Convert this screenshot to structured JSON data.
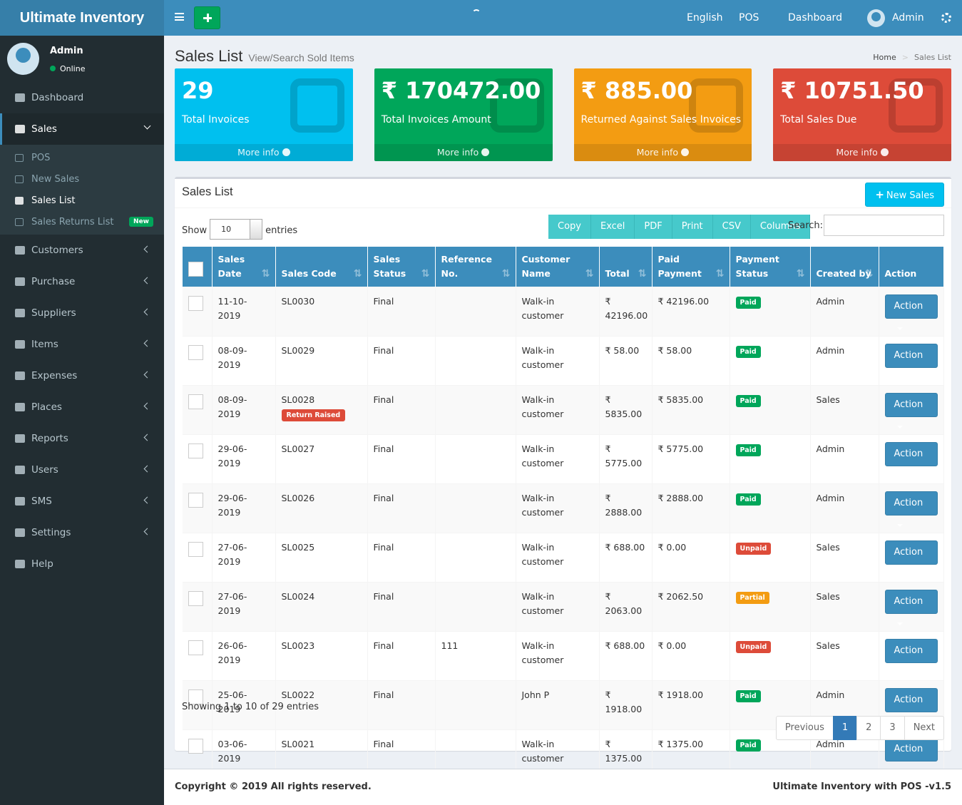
{
  "brand": "Ultimate Inventory",
  "topbar": {
    "language": "English",
    "pos": "POS",
    "dashboard": "Dashboard",
    "user": "Admin"
  },
  "sidebar": {
    "user": {
      "name": "Admin",
      "status": "Online"
    },
    "menu": [
      {
        "label": "Dashboard"
      },
      {
        "label": "Sales",
        "active": true,
        "children": [
          {
            "label": "POS"
          },
          {
            "label": "New Sales"
          },
          {
            "label": "Sales List",
            "active": true
          },
          {
            "label": "Sales Returns List",
            "badge": "New"
          }
        ]
      },
      {
        "label": "Customers",
        "expandable": true
      },
      {
        "label": "Purchase",
        "expandable": true
      },
      {
        "label": "Suppliers",
        "expandable": true
      },
      {
        "label": "Items",
        "expandable": true
      },
      {
        "label": "Expenses",
        "expandable": true
      },
      {
        "label": "Places",
        "expandable": true
      },
      {
        "label": "Reports",
        "expandable": true
      },
      {
        "label": "Users",
        "expandable": true
      },
      {
        "label": "SMS",
        "expandable": true
      },
      {
        "label": "Settings",
        "expandable": true
      },
      {
        "label": "Help"
      }
    ]
  },
  "header": {
    "title": "Sales List",
    "subtitle": "View/Search Sold Items",
    "breadcrumb": [
      "Home",
      "Sales List"
    ]
  },
  "stats": [
    {
      "value": "29",
      "label": "Total Invoices",
      "link": "More info",
      "color": "#00c0ef"
    },
    {
      "value": "₹ 170472.00",
      "label": "Total Invoices Amount",
      "link": "More info",
      "color": "#00a65a"
    },
    {
      "value": "₹ 885.00",
      "label": "Returned Against Sales Invoices",
      "link": "More info",
      "color": "#f39c12"
    },
    {
      "value": "₹ 10751.50",
      "label": "Total Sales Due",
      "link": "More info",
      "color": "#dd4b39"
    }
  ],
  "box": {
    "title": "Sales List",
    "new_button": "New Sales"
  },
  "controls": {
    "show": "Show",
    "page_size": "10",
    "entries": "entries",
    "buttons": [
      "Copy",
      "Excel",
      "PDF",
      "Print",
      "CSV",
      "Columns"
    ],
    "search": "Search:"
  },
  "table": {
    "columns": [
      "Sales Date",
      "Sales Code",
      "Sales Status",
      "Reference No.",
      "Customer Name",
      "Total",
      "Paid Payment",
      "Payment Status",
      "Created by",
      "Action"
    ],
    "badge_colors": {
      "Paid": "#00a65a",
      "Unpaid": "#dd4b39",
      "Partial": "#f39c12"
    },
    "rows": [
      {
        "cells": [
          "11-10-2019",
          "SL0030",
          "Final",
          "",
          "Walk-in customer",
          "₹ 42196.00",
          "₹ 42196.00",
          "Paid",
          "Admin",
          "Action"
        ]
      },
      {
        "cells": [
          "08-09-2019",
          "SL0029",
          "Final",
          "",
          "Walk-in customer",
          "₹ 58.00",
          "₹ 58.00",
          "Paid",
          "Admin",
          "Action"
        ]
      },
      {
        "cells": [
          "08-09-2019",
          "SL0028",
          "Final",
          "",
          "Walk-in customer",
          "₹ 5835.00",
          "₹ 5835.00",
          "Paid",
          "Sales",
          "Action"
        ],
        "note": "Return Raised"
      },
      {
        "cells": [
          "29-06-2019",
          "SL0027",
          "Final",
          "",
          "Walk-in customer",
          "₹ 5775.00",
          "₹ 5775.00",
          "Paid",
          "Admin",
          "Action"
        ]
      },
      {
        "cells": [
          "29-06-2019",
          "SL0026",
          "Final",
          "",
          "Walk-in customer",
          "₹ 2888.00",
          "₹ 2888.00",
          "Paid",
          "Admin",
          "Action"
        ]
      },
      {
        "cells": [
          "27-06-2019",
          "SL0025",
          "Final",
          "",
          "Walk-in customer",
          "₹ 688.00",
          "₹ 0.00",
          "Unpaid",
          "Sales",
          "Action"
        ]
      },
      {
        "cells": [
          "27-06-2019",
          "SL0024",
          "Final",
          "",
          "Walk-in customer",
          "₹ 2063.00",
          "₹ 2062.50",
          "Partial",
          "Sales",
          "Action"
        ]
      },
      {
        "cells": [
          "26-06-2019",
          "SL0023",
          "Final",
          "111",
          "Walk-in customer",
          "₹ 688.00",
          "₹ 0.00",
          "Unpaid",
          "Sales",
          "Action"
        ]
      },
      {
        "cells": [
          "25-06-2019",
          "SL0022",
          "Final",
          "",
          "John P",
          "₹ 1918.00",
          "₹ 1918.00",
          "Paid",
          "Admin",
          "Action"
        ]
      },
      {
        "cells": [
          "03-06-2019",
          "SL0021",
          "Final",
          "",
          "Walk-in customer",
          "₹ 1375.00",
          "₹ 1375.00",
          "Paid",
          "Admin",
          "Action"
        ]
      }
    ]
  },
  "table_footer": {
    "info": "Showing 1 to 10 of 29 entries",
    "pagination": [
      "Previous",
      "1",
      "2",
      "3",
      "Next"
    ],
    "current": "1"
  },
  "footer": {
    "copyright": "Copyright © 2019 All rights reserved.",
    "version": "Ultimate Inventory with POS -v1.5"
  }
}
